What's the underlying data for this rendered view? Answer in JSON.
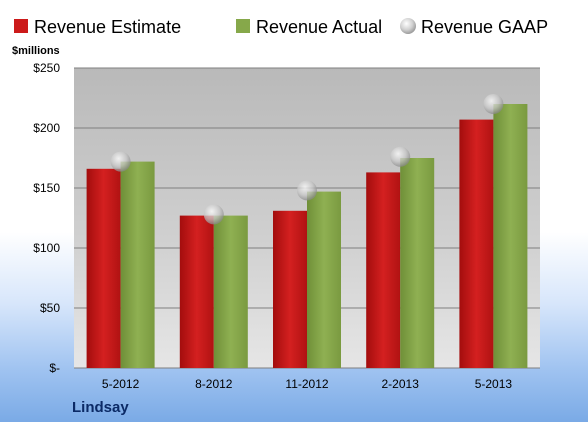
{
  "chart_data": {
    "type": "bar",
    "unit_label": "$millions",
    "footer_label": "Lindsay",
    "categories": [
      "5-2012",
      "8-2012",
      "11-2012",
      "2-2013",
      "5-2013"
    ],
    "y_ticks": [
      "$-",
      "$50",
      "$100",
      "$150",
      "$200",
      "$250"
    ],
    "ylim": [
      0,
      250
    ],
    "grid": true,
    "legend_position": "top",
    "series": [
      {
        "name": "Revenue Estimate",
        "kind": "bar",
        "color": "#cc1a1a",
        "values": [
          166,
          127,
          131,
          163,
          207
        ]
      },
      {
        "name": "Revenue Actual",
        "kind": "bar",
        "color": "#86a84a",
        "values": [
          172,
          127,
          147,
          175,
          220
        ]
      },
      {
        "name": "Revenue GAAP",
        "kind": "marker",
        "color": "#c0c0c0",
        "values": [
          172,
          128,
          148,
          176,
          220
        ]
      }
    ]
  }
}
